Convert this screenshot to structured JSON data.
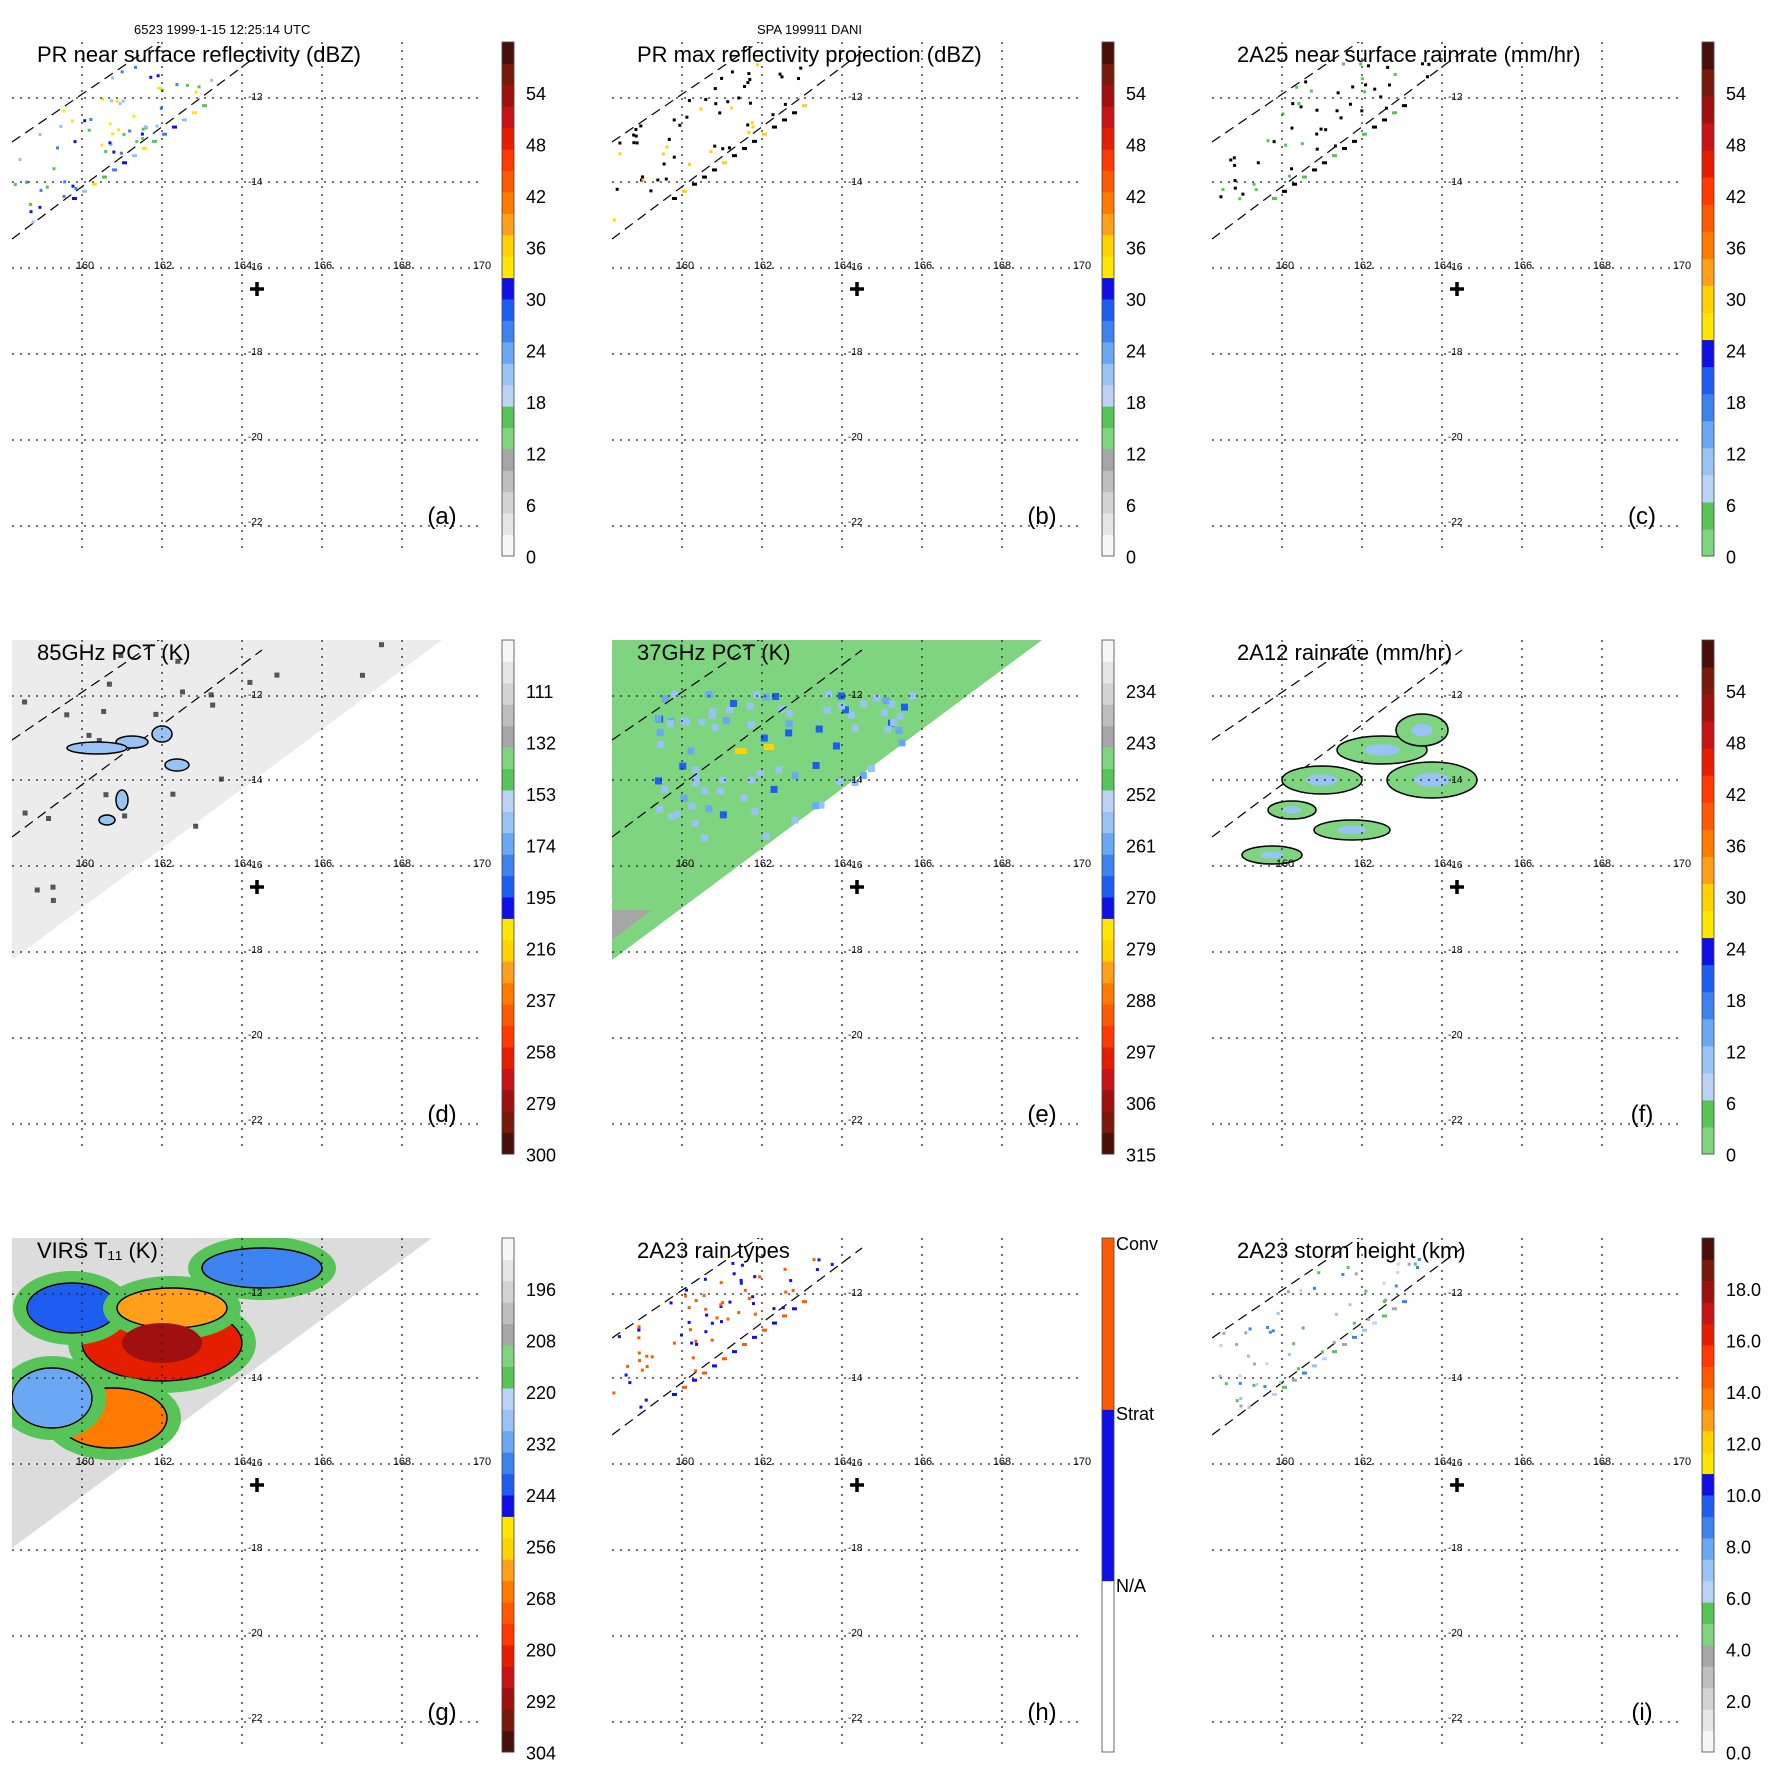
{
  "header": {
    "left": "6523 1999-1-15 12:25:14 UTC",
    "center": "SPA 199911 DANI"
  },
  "lon_ticks": [
    "160",
    "162",
    "164",
    "166",
    "168",
    "170"
  ],
  "lat_ticks": [
    "-12",
    "-14",
    "-16",
    "-18",
    "-20",
    "-22"
  ],
  "colors": {
    "grid": "#222222",
    "rain_scale": [
      "#f7f7f7",
      "#e6e6e6",
      "#d3d3d3",
      "#bebebe",
      "#a6a6a6",
      "#7fd47f",
      "#57c457",
      "#bcd3f5",
      "#99c2f5",
      "#6aa8f3",
      "#3d83ef",
      "#1d5ef0",
      "#1010e6",
      "#ffe600",
      "#ffd200",
      "#ff9f1a",
      "#ff7a00",
      "#ff5a00",
      "#ff3a00",
      "#e61e00",
      "#c81414",
      "#a01010",
      "#7a1a0a",
      "#4a0f0a"
    ],
    "pct_scale": [
      "#4a0f0a",
      "#7a1a0a",
      "#a01010",
      "#c81414",
      "#e61e00",
      "#ff3a00",
      "#ff5a00",
      "#ff7a00",
      "#ff9f1a",
      "#ffd200",
      "#ffe600",
      "#1010e6",
      "#1d5ef0",
      "#3d83ef",
      "#6aa8f3",
      "#99c2f5",
      "#bcd3f5",
      "#57c457",
      "#7fd47f",
      "#a6a6a6",
      "#bebebe",
      "#d3d3d3",
      "#e6e6e6",
      "#f7f7f7"
    ],
    "type_scale": [
      "#ffffff",
      "#1010e6",
      "#ff5a00"
    ],
    "field_green": "#7fd47f",
    "field_gray": "#dcdcdc",
    "field_lightgray": "#ececec"
  },
  "panels": [
    {
      "title": "PR near surface reflectivity (dBZ)",
      "letter": "(a)",
      "cb_labels": [
        "54",
        "48",
        "42",
        "36",
        "30",
        "24",
        "18",
        "12",
        "6",
        "0"
      ],
      "scale": "rain",
      "swath": "narrow",
      "spots": "refl"
    },
    {
      "title": "PR max reflectivity projection (dBZ)",
      "letter": "(b)",
      "cb_labels": [
        "54",
        "48",
        "42",
        "36",
        "30",
        "24",
        "18",
        "12",
        "6",
        "0"
      ],
      "scale": "rain",
      "swath": "narrow",
      "spots": "contour"
    },
    {
      "title": "2A25 near surface rainrate (mm/hr)",
      "letter": "(c)",
      "cb_labels": [
        "54",
        "48",
        "42",
        "36",
        "30",
        "24",
        "18",
        "12",
        "6",
        "0"
      ],
      "scale": "rain_green",
      "swath": "narrow",
      "spots": "contour_green"
    },
    {
      "title": "85GHz PCT (K)",
      "letter": "(d)",
      "cb_labels": [
        "111",
        "132",
        "153",
        "174",
        "195",
        "216",
        "237",
        "258",
        "279",
        "300"
      ],
      "scale": "pct",
      "swath": "gray",
      "spots": "pct85"
    },
    {
      "title": "37GHz PCT (K)",
      "letter": "(e)",
      "cb_labels": [
        "234",
        "243",
        "252",
        "261",
        "270",
        "279",
        "288",
        "297",
        "306",
        "315"
      ],
      "scale": "pct",
      "swath": "green",
      "spots": "pct37"
    },
    {
      "title": "2A12 rainrate (mm/hr)",
      "letter": "(f)",
      "cb_labels": [
        "54",
        "48",
        "42",
        "36",
        "30",
        "24",
        "18",
        "12",
        "6",
        "0"
      ],
      "scale": "rain_green",
      "swath": "none",
      "spots": "blobs"
    },
    {
      "title": "VIRS T₁₁ (K)",
      "letter": "(g)",
      "cb_labels": [
        "196",
        "208",
        "220",
        "232",
        "244",
        "256",
        "268",
        "280",
        "292",
        "304"
      ],
      "scale": "pct",
      "swath": "virs",
      "spots": "virs"
    },
    {
      "title": "2A23 rain types",
      "letter": "(h)",
      "cb_labels": [
        "Conv",
        "Strat",
        "N/A"
      ],
      "scale": "type",
      "swath": "narrow",
      "spots": "types"
    },
    {
      "title": "2A23 storm height (km)",
      "letter": "(i)",
      "cb_labels": [
        "18.0",
        "16.0",
        "14.0",
        "12.0",
        "10.0",
        "8.0",
        "6.0",
        "4.0",
        "2.0",
        "0.0"
      ],
      "scale": "rain",
      "swath": "narrow",
      "spots": "height"
    }
  ],
  "chart_data": {
    "type": "heatmap",
    "x": [
      "160",
      "162",
      "164",
      "166",
      "168",
      "170"
    ],
    "y": [
      "-12",
      "-14",
      "-16",
      "-18",
      "-20",
      "-22"
    ],
    "center_marker": {
      "lon": 164,
      "lat": -17
    },
    "panels": [
      {
        "id": "a",
        "title": "PR near surface reflectivity (dBZ)",
        "colorbar": [
          0,
          6,
          12,
          18,
          24,
          30,
          36,
          42,
          48,
          54
        ]
      },
      {
        "id": "b",
        "title": "PR max reflectivity projection (dBZ)",
        "colorbar": [
          0,
          6,
          12,
          18,
          24,
          30,
          36,
          42,
          48,
          54
        ]
      },
      {
        "id": "c",
        "title": "2A25 near surface rainrate (mm/hr)",
        "colorbar": [
          0,
          6,
          12,
          18,
          24,
          30,
          36,
          42,
          48,
          54
        ]
      },
      {
        "id": "d",
        "title": "85GHz PCT (K)",
        "colorbar": [
          300,
          279,
          258,
          237,
          216,
          195,
          174,
          153,
          132,
          111
        ]
      },
      {
        "id": "e",
        "title": "37GHz PCT (K)",
        "colorbar": [
          315,
          306,
          297,
          288,
          279,
          270,
          261,
          252,
          243,
          234
        ]
      },
      {
        "id": "f",
        "title": "2A12 rainrate (mm/hr)",
        "colorbar": [
          0,
          6,
          12,
          18,
          24,
          30,
          36,
          42,
          48,
          54
        ]
      },
      {
        "id": "g",
        "title": "VIRS T11 (K)",
        "colorbar": [
          304,
          292,
          280,
          268,
          256,
          244,
          232,
          220,
          208,
          196
        ]
      },
      {
        "id": "h",
        "title": "2A23 rain types",
        "colorbar": [
          "N/A",
          "Strat",
          "Conv"
        ]
      },
      {
        "id": "i",
        "title": "2A23 storm height (km)",
        "colorbar": [
          0.0,
          2.0,
          4.0,
          6.0,
          8.0,
          10.0,
          12.0,
          14.0,
          16.0,
          18.0
        ]
      }
    ]
  }
}
